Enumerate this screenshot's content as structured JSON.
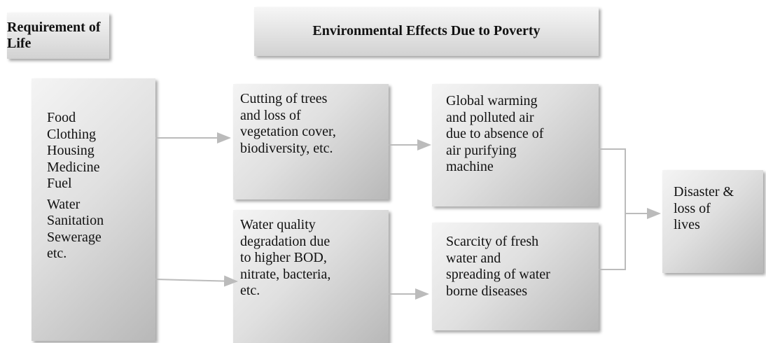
{
  "headers": [
    {
      "label": "Requirement of Life"
    },
    {
      "label": "Environmental Effects Due to Poverty"
    }
  ],
  "nodes": [
    {
      "lines": [
        "Food",
        "Clothing",
        "Housing",
        "Medicine",
        "Fuel",
        "Water",
        "Sanitation",
        "Sewerage",
        "etc."
      ]
    },
    {
      "lines": [
        "Cutting of trees",
        "and loss of",
        "vegetation cover,",
        "biodiversity, etc."
      ]
    },
    {
      "lines": [
        "Water quality",
        "degradation due",
        "to higher BOD,",
        "nitrate, bacteria,",
        "etc."
      ]
    },
    {
      "lines": [
        "Global warming",
        "and polluted air",
        "due to absence of",
        "air purifying",
        "machine"
      ]
    },
    {
      "lines": [
        "Scarcity of fresh",
        "water and",
        "spreading of water",
        "borne diseases"
      ]
    },
    {
      "lines": [
        "Disaster &",
        "loss of",
        "lives"
      ]
    }
  ]
}
